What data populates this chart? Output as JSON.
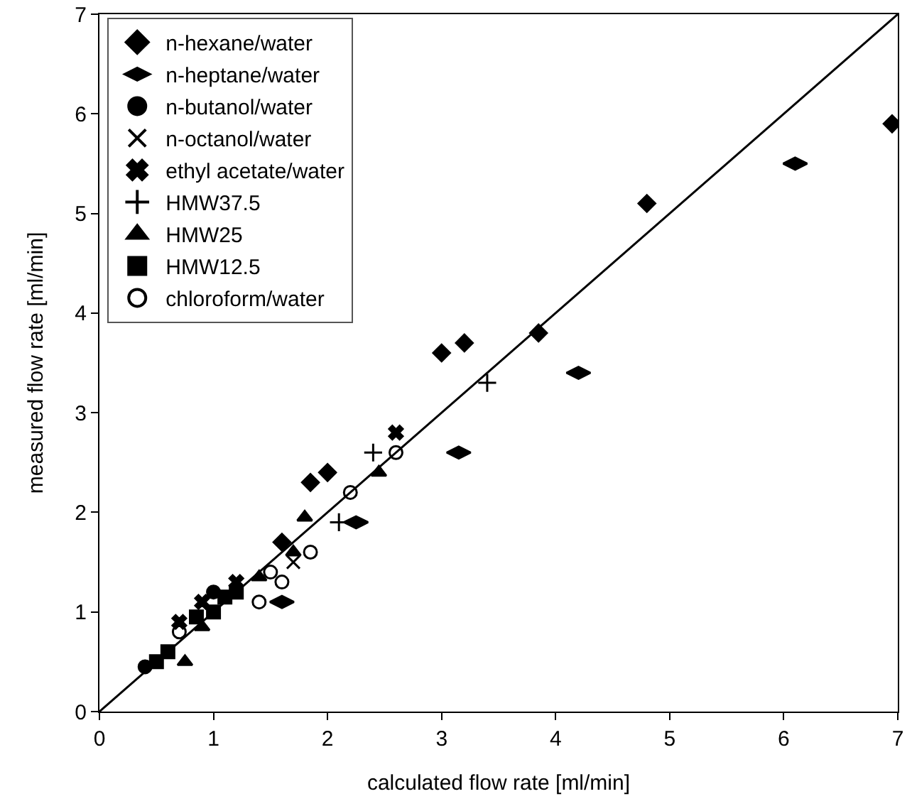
{
  "chart_data": {
    "type": "scatter",
    "xlabel": "calculated flow rate [ml/min]",
    "ylabel": "measured flow rate [ml/min]",
    "xlim": [
      0,
      7
    ],
    "ylim": [
      0,
      7
    ],
    "xticks": [
      0,
      1,
      2,
      3,
      4,
      5,
      6,
      7
    ],
    "yticks": [
      0,
      1,
      2,
      3,
      4,
      5,
      6,
      7
    ],
    "grid": false,
    "legend": "top left",
    "series": [
      {
        "name": "n-hexane/water",
        "color": "#000000",
        "marker": "diamond",
        "x": [
          1.85,
          2.0,
          3.0,
          3.2,
          3.85,
          4.8,
          6.95,
          1.6
        ],
        "values": [
          2.3,
          2.4,
          3.6,
          3.7,
          3.8,
          5.1,
          5.9,
          1.7
        ]
      },
      {
        "name": "n-heptane/water",
        "color": "#000000",
        "x": [
          6.1,
          4.2,
          3.15,
          2.25,
          1.6
        ],
        "values": [
          5.5,
          3.4,
          2.6,
          1.9,
          1.1
        ]
      },
      {
        "name": "n-butanol/water",
        "color": "#000000",
        "marker": "circle",
        "x": [
          0.4,
          1.0
        ],
        "values": [
          0.45,
          1.2
        ]
      },
      {
        "name": "n-octanol/water",
        "color": "#000000",
        "marker": "x",
        "x": [
          1.7
        ],
        "values": [
          1.5
        ]
      },
      {
        "name": "ethyl acetate/water",
        "color": "#000000",
        "marker": "cross",
        "x": [
          0.7,
          0.9,
          1.2,
          2.6
        ],
        "values": [
          0.9,
          1.1,
          1.3,
          2.8
        ]
      },
      {
        "name": "HMW37.5",
        "color": "#000000",
        "marker": "plus",
        "x": [
          3.4,
          2.4,
          2.1
        ],
        "values": [
          3.3,
          2.6,
          1.9
        ]
      },
      {
        "name": "HMW25",
        "color": "#000000",
        "marker": "triangle",
        "x": [
          0.75,
          0.9,
          2.45,
          1.8,
          1.4,
          1.7
        ],
        "values": [
          0.5,
          0.85,
          2.4,
          1.95,
          1.35,
          1.6
        ]
      },
      {
        "name": "HMW12.5",
        "color": "#000000",
        "marker": "square",
        "x": [
          0.5,
          0.6,
          1.0,
          1.1,
          1.2,
          0.85
        ],
        "values": [
          0.5,
          0.6,
          1.0,
          1.15,
          1.2,
          0.95
        ]
      },
      {
        "name": "chloroform/water",
        "color": "#000000",
        "marker": "circle-open",
        "x": [
          2.6,
          2.2,
          1.4,
          1.6,
          1.85,
          1.5,
          0.7
        ],
        "values": [
          2.6,
          2.2,
          1.1,
          1.3,
          1.6,
          1.4,
          0.8
        ]
      },
      {
        "type": "line",
        "color": "#000000",
        "marker": "none",
        "x": [
          0,
          7
        ],
        "values": [
          0,
          7
        ]
      }
    ]
  }
}
